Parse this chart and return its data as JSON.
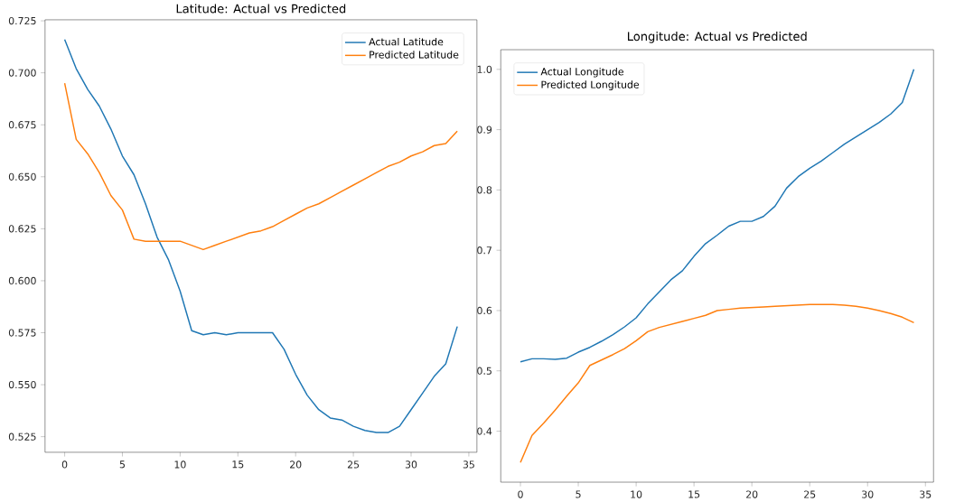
{
  "chart_data": [
    {
      "type": "line",
      "title": "Latitude: Actual vs Predicted",
      "x": [
        0,
        1,
        2,
        3,
        4,
        5,
        6,
        7,
        8,
        9,
        10,
        11,
        12,
        13,
        14,
        15,
        16,
        17,
        18,
        19,
        20,
        21,
        22,
        23,
        24,
        25,
        26,
        27,
        28,
        29,
        30,
        31,
        32,
        33,
        34
      ],
      "series": [
        {
          "name": "Actual Latitude",
          "color": "#1f77b4",
          "values": [
            0.716,
            0.702,
            0.692,
            0.684,
            0.673,
            0.66,
            0.651,
            0.637,
            0.621,
            0.61,
            0.595,
            0.576,
            0.574,
            0.575,
            0.574,
            0.575,
            0.575,
            0.575,
            0.575,
            0.567,
            0.555,
            0.545,
            0.538,
            0.534,
            0.533,
            0.53,
            0.528,
            0.527,
            0.527,
            0.53,
            0.538,
            0.546,
            0.554,
            0.56,
            0.578
          ]
        },
        {
          "name": "Predicted Latitude",
          "color": "#ff7f0e",
          "values": [
            0.695,
            0.668,
            0.661,
            0.652,
            0.641,
            0.634,
            0.62,
            0.619,
            0.619,
            0.619,
            0.619,
            0.617,
            0.615,
            0.617,
            0.619,
            0.621,
            0.623,
            0.624,
            0.626,
            0.629,
            0.632,
            0.635,
            0.637,
            0.64,
            0.643,
            0.646,
            0.649,
            0.652,
            0.655,
            0.657,
            0.66,
            0.662,
            0.665,
            0.666,
            0.672
          ]
        }
      ],
      "xlim": [
        -1.7,
        35.7
      ],
      "xticks": [
        0,
        5,
        10,
        15,
        20,
        25,
        30,
        35
      ],
      "ylim": [
        0.5175,
        0.7255
      ],
      "yticks": [
        {
          "value": 0.525,
          "label": "0.525"
        },
        {
          "value": 0.55,
          "label": "0.550"
        },
        {
          "value": 0.575,
          "label": "0.575"
        },
        {
          "value": 0.6,
          "label": "0.600"
        },
        {
          "value": 0.625,
          "label": "0.625"
        },
        {
          "value": 0.65,
          "label": "0.650"
        },
        {
          "value": 0.675,
          "label": "0.675"
        },
        {
          "value": 0.7,
          "label": "0.700"
        },
        {
          "value": 0.725,
          "label": "0.725"
        }
      ],
      "legend": "top right",
      "grid": false,
      "marker": "none",
      "line_style": "solid"
    },
    {
      "type": "line",
      "title": "Longitude: Actual vs Predicted",
      "x": [
        0,
        1,
        2,
        3,
        4,
        5,
        6,
        7,
        8,
        9,
        10,
        11,
        12,
        13,
        14,
        15,
        16,
        17,
        18,
        19,
        20,
        21,
        22,
        23,
        24,
        25,
        26,
        27,
        28,
        29,
        30,
        31,
        32,
        33,
        34
      ],
      "series": [
        {
          "name": "Actual Longitude",
          "color": "#1f77b4",
          "values": [
            0.515,
            0.52,
            0.52,
            0.519,
            0.521,
            0.531,
            0.539,
            0.549,
            0.56,
            0.573,
            0.588,
            0.611,
            0.631,
            0.651,
            0.666,
            0.69,
            0.711,
            0.725,
            0.74,
            0.748,
            0.748,
            0.756,
            0.773,
            0.803,
            0.822,
            0.836,
            0.848,
            0.862,
            0.876,
            0.888,
            0.9,
            0.912,
            0.926,
            0.945,
            1.0
          ]
        },
        {
          "name": "Predicted Longitude",
          "color": "#ff7f0e",
          "values": [
            0.348,
            0.393,
            0.413,
            0.435,
            0.458,
            0.48,
            0.509,
            0.518,
            0.527,
            0.537,
            0.55,
            0.565,
            0.572,
            0.577,
            0.582,
            0.587,
            0.592,
            0.6,
            0.602,
            0.604,
            0.605,
            0.606,
            0.607,
            0.608,
            0.609,
            0.61,
            0.61,
            0.61,
            0.609,
            0.607,
            0.604,
            0.6,
            0.595,
            0.589,
            0.58
          ]
        }
      ],
      "xlim": [
        -1.7,
        35.7
      ],
      "xticks": [
        0,
        5,
        10,
        15,
        20,
        25,
        30,
        35
      ],
      "ylim": [
        0.3154,
        1.0326
      ],
      "yticks": [
        {
          "value": 0.4,
          "label": "0.4"
        },
        {
          "value": 0.5,
          "label": "0.5"
        },
        {
          "value": 0.6,
          "label": "0.6"
        },
        {
          "value": 0.7,
          "label": "0.7"
        },
        {
          "value": 0.8,
          "label": "0.8"
        },
        {
          "value": 0.9,
          "label": "0.9"
        },
        {
          "value": 1.0,
          "label": "1.0"
        }
      ],
      "legend": "top left",
      "grid": false,
      "marker": "none",
      "line_style": "solid"
    }
  ]
}
